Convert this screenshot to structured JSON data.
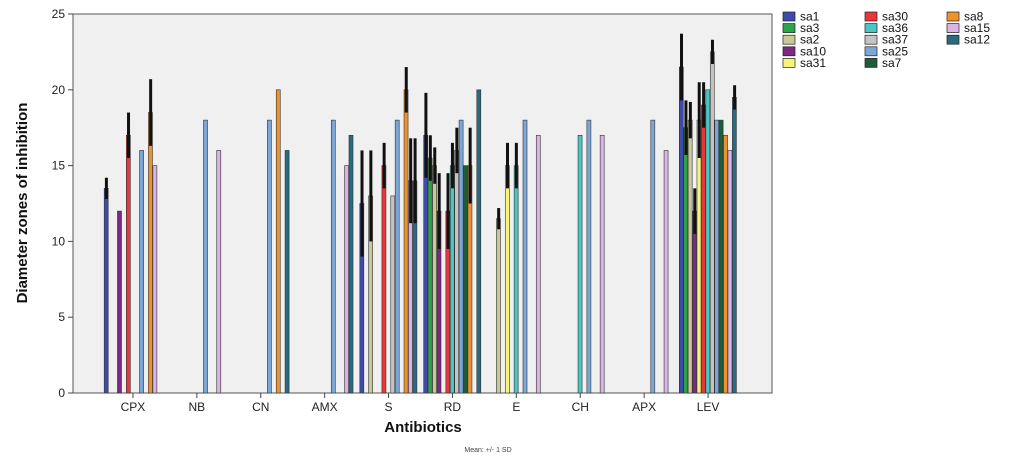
{
  "chart_data": {
    "type": "bar",
    "ylabel": "Diameter zones of inhibition",
    "xlabel": "Antibiotics",
    "footnote": "Mean: +/- 1 SD",
    "ylim": [
      0,
      25
    ],
    "yticks": [
      0,
      5,
      10,
      15,
      20,
      25
    ],
    "categories": [
      "CPX",
      "NB",
      "CN",
      "AMX",
      "S",
      "RD",
      "E",
      "CH",
      "APX",
      "LEV"
    ],
    "legend_position": "right",
    "grid": false,
    "series": [
      {
        "name": "sa1",
        "color": "#3F4BA8",
        "values": [
          13.5,
          0,
          0,
          0,
          12.5,
          17,
          0,
          0,
          0,
          21.5
        ],
        "err": [
          0.7,
          0,
          0,
          0,
          3.5,
          2.8,
          0,
          0,
          0,
          2.2
        ]
      },
      {
        "name": "sa3",
        "color": "#2EA44A",
        "values": [
          0,
          0,
          0,
          0,
          0,
          15.5,
          0,
          0,
          0,
          17.5
        ],
        "err": [
          0,
          0,
          0,
          0,
          0,
          1.5,
          0,
          0,
          0,
          1.8
        ]
      },
      {
        "name": "sa2",
        "color": "#C9C896",
        "values": [
          0,
          0,
          0,
          0,
          13,
          15,
          11.5,
          0,
          0,
          18
        ],
        "err": [
          0,
          0,
          0,
          0,
          3,
          1.2,
          0.7,
          0,
          0,
          1.2
        ]
      },
      {
        "name": "sa10",
        "color": "#7A2A84",
        "values": [
          12,
          0,
          0,
          0,
          0,
          12,
          0,
          0,
          0,
          12
        ],
        "err": [
          0,
          0,
          0,
          0,
          0,
          2.5,
          0,
          0,
          0,
          1.5
        ]
      },
      {
        "name": "sa31",
        "color": "#F7F47A",
        "values": [
          0,
          0,
          0,
          0,
          0,
          0,
          15,
          0,
          0,
          18
        ],
        "err": [
          0,
          0,
          0,
          0,
          0,
          0,
          1.5,
          0,
          0,
          2.5
        ]
      },
      {
        "name": "sa30",
        "color": "#E8363A",
        "values": [
          17,
          0,
          0,
          0,
          15,
          12,
          0,
          0,
          0,
          19
        ],
        "err": [
          1.5,
          0,
          0,
          0,
          1.5,
          2.5,
          0,
          0,
          0,
          1.5
        ]
      },
      {
        "name": "sa36",
        "color": "#4BC6C2",
        "values": [
          0,
          0,
          0,
          0,
          0,
          15,
          15,
          17,
          0,
          20
        ],
        "err": [
          0,
          0,
          0,
          0,
          0,
          1.5,
          1.5,
          0,
          0,
          0
        ]
      },
      {
        "name": "sa37",
        "color": "#C4C4C4",
        "values": [
          0,
          0,
          0,
          0,
          13,
          16,
          0,
          0,
          0,
          22.5
        ],
        "err": [
          0,
          0,
          0,
          0,
          0,
          1.5,
          0,
          0,
          0,
          0.8
        ]
      },
      {
        "name": "sa25",
        "color": "#7BA7D8",
        "values": [
          16,
          18,
          18,
          18,
          18,
          18,
          18,
          18,
          18,
          18
        ],
        "err": [
          0,
          0,
          0,
          0,
          0,
          0,
          0,
          0,
          0,
          0
        ]
      },
      {
        "name": "sa7",
        "color": "#1E5C3A",
        "values": [
          0,
          0,
          0,
          0,
          0,
          15,
          0,
          0,
          0,
          18
        ],
        "err": [
          0,
          0,
          0,
          0,
          0,
          0,
          0,
          0,
          0,
          0
        ]
      },
      {
        "name": "sa8",
        "color": "#F0922C",
        "values": [
          18.5,
          0,
          20,
          0,
          20,
          15,
          0,
          0,
          0,
          17
        ],
        "err": [
          2.2,
          0,
          0,
          0,
          1.5,
          2.5,
          0,
          0,
          0,
          0
        ]
      },
      {
        "name": "sa15",
        "color": "#D9B4E4",
        "values": [
          15,
          16,
          0,
          15,
          14,
          0,
          17,
          17,
          16,
          16
        ],
        "err": [
          0,
          0,
          0,
          0,
          2.8,
          0,
          0,
          0,
          0,
          0
        ]
      },
      {
        "name": "sa12",
        "color": "#2A6A80",
        "values": [
          0,
          0,
          16,
          17,
          14,
          20,
          0,
          0,
          0,
          19.5
        ],
        "err": [
          0,
          0,
          0,
          0,
          2.8,
          0,
          0,
          0,
          0,
          0.8
        ]
      }
    ]
  }
}
